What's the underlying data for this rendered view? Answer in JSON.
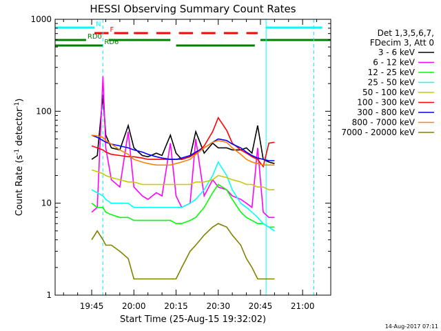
{
  "chart_data": {
    "type": "line",
    "title": "HESSI Observing Summary Count Rates",
    "xlabel": "Start Time (25-Aug-15 19:32:02)",
    "ylabel_main": "Count Rate (s",
    "ylabel_sup1": "-1",
    "ylabel_mid": " detector",
    "ylabel_sup2": "-1",
    "ylabel_end": ")",
    "timestamp": "14-Aug-2017 07:11",
    "y_scale": "log",
    "ylim": [
      1,
      1000
    ],
    "xlim": [
      "19:32",
      "21:10"
    ],
    "x_ticks": [
      "19:45",
      "20:00",
      "20:15",
      "20:30",
      "20:45",
      "21:00"
    ],
    "y_tick_labels": [
      "1",
      "10",
      "100",
      "1000"
    ],
    "legend_header": [
      "Det 1,3,5,6,7,",
      "FDecim 3, Att 0"
    ],
    "flags": {
      "N": {
        "label": "N",
        "intervals": [
          [
            "19:32",
            "19:46"
          ],
          [
            "20:47",
            "21:07"
          ]
        ],
        "color": "#00ffff"
      },
      "F": {
        "label": "F",
        "intervals": [
          [
            "19:46",
            "19:51"
          ],
          [
            "19:53",
            "19:58"
          ],
          [
            "20:00",
            "20:05"
          ],
          [
            "20:08",
            "20:13"
          ],
          [
            "20:16",
            "20:21"
          ],
          [
            "20:24",
            "20:29"
          ],
          [
            "20:32",
            "20:37"
          ],
          [
            "20:40",
            "20:44"
          ]
        ],
        "color": "#ff0000"
      },
      "RD0": {
        "label": "RD0",
        "intervals": [
          [
            "19:32",
            "19:43"
          ],
          [
            "19:51",
            "20:13"
          ],
          [
            "20:45",
            "21:10"
          ]
        ],
        "color": "#008000"
      },
      "RD6": {
        "label": "RD6",
        "intervals": [
          [
            "19:32",
            "19:49"
          ],
          [
            "20:15",
            "20:43"
          ]
        ],
        "color": "#008000"
      }
    },
    "vlines_cyan_solid": [
      "19:32",
      "20:47"
    ],
    "vlines_cyan_dashed": [
      "19:49",
      "21:04"
    ],
    "series": [
      {
        "name": "3 - 6 keV",
        "color": "#000000",
        "x": [
          "19:45",
          "19:47",
          "19:49",
          "19:50",
          "19:52",
          "19:55",
          "19:58",
          "20:00",
          "20:03",
          "20:05",
          "20:08",
          "20:10",
          "20:13",
          "20:15",
          "20:17",
          "20:20",
          "20:22",
          "20:25",
          "20:28",
          "20:30",
          "20:33",
          "20:35",
          "20:38",
          "20:40",
          "20:42",
          "20:44",
          "20:46",
          "20:48",
          "20:50"
        ],
        "values": [
          30,
          33,
          150,
          55,
          40,
          38,
          70,
          40,
          33,
          32,
          35,
          33,
          55,
          35,
          30,
          32,
          60,
          35,
          45,
          40,
          40,
          38,
          38,
          40,
          35,
          70,
          30,
          28,
          27
        ]
      },
      {
        "name": "6 - 12 keV",
        "color": "#ff00ff",
        "x": [
          "19:45",
          "19:47",
          "19:49",
          "19:50",
          "19:52",
          "19:55",
          "19:58",
          "20:00",
          "20:03",
          "20:05",
          "20:08",
          "20:10",
          "20:13",
          "20:15",
          "20:17",
          "20:20",
          "20:22",
          "20:25",
          "20:28",
          "20:30",
          "20:33",
          "20:35",
          "20:38",
          "20:40",
          "20:42",
          "20:44",
          "20:46",
          "20:48",
          "20:50"
        ],
        "values": [
          8,
          9,
          240,
          40,
          18,
          15,
          60,
          15,
          12,
          11,
          13,
          12,
          45,
          12,
          9,
          10,
          50,
          12,
          18,
          15,
          14,
          12,
          11,
          10,
          9,
          40,
          8,
          7,
          7
        ]
      },
      {
        "name": "12 - 25 keV",
        "color": "#00ff00",
        "x": [
          "19:45",
          "19:47",
          "19:49",
          "19:50",
          "19:52",
          "19:55",
          "19:58",
          "20:00",
          "20:03",
          "20:05",
          "20:08",
          "20:10",
          "20:13",
          "20:15",
          "20:17",
          "20:20",
          "20:22",
          "20:25",
          "20:28",
          "20:30",
          "20:33",
          "20:35",
          "20:38",
          "20:40",
          "20:42",
          "20:44",
          "20:46",
          "20:48",
          "20:50"
        ],
        "values": [
          10,
          9,
          9,
          8,
          7.5,
          7,
          7,
          6.5,
          6.5,
          6.5,
          6.5,
          6.5,
          6.5,
          6,
          6,
          6.5,
          7,
          9,
          13,
          16,
          14,
          11,
          8,
          7,
          6.5,
          6,
          6,
          5.5,
          5.5
        ]
      },
      {
        "name": "25 - 50 keV",
        "color": "#00ffff",
        "x": [
          "19:45",
          "19:47",
          "19:49",
          "19:50",
          "19:52",
          "19:55",
          "19:58",
          "20:00",
          "20:03",
          "20:05",
          "20:08",
          "20:10",
          "20:13",
          "20:15",
          "20:17",
          "20:20",
          "20:22",
          "20:25",
          "20:28",
          "20:30",
          "20:33",
          "20:35",
          "20:38",
          "20:40",
          "20:42",
          "20:44",
          "20:46",
          "20:48",
          "20:50"
        ],
        "values": [
          14,
          13,
          12,
          11,
          10,
          10,
          10,
          9,
          9,
          9,
          9,
          9,
          9,
          9,
          9,
          10,
          11,
          14,
          20,
          28,
          20,
          14,
          10,
          9,
          8,
          7,
          6,
          5.5,
          5
        ]
      },
      {
        "name": "50 - 100 keV",
        "color": "#c8c800",
        "x": [
          "19:45",
          "19:47",
          "19:49",
          "19:50",
          "19:52",
          "19:55",
          "19:58",
          "20:00",
          "20:03",
          "20:05",
          "20:08",
          "20:10",
          "20:13",
          "20:15",
          "20:17",
          "20:20",
          "20:22",
          "20:25",
          "20:28",
          "20:30",
          "20:33",
          "20:35",
          "20:38",
          "20:40",
          "20:42",
          "20:44",
          "20:46",
          "20:48",
          "20:50"
        ],
        "values": [
          23,
          22,
          21,
          20,
          19,
          18,
          17,
          17,
          16,
          16,
          16,
          16,
          16,
          16,
          16,
          16,
          17,
          17,
          18,
          20,
          19,
          18,
          17,
          16,
          16,
          15,
          15,
          14,
          14
        ]
      },
      {
        "name": "100 - 300 keV",
        "color": "#ff0000",
        "x": [
          "19:45",
          "19:47",
          "19:49",
          "19:50",
          "19:52",
          "19:55",
          "19:58",
          "20:00",
          "20:03",
          "20:05",
          "20:08",
          "20:10",
          "20:13",
          "20:15",
          "20:17",
          "20:20",
          "20:22",
          "20:25",
          "20:28",
          "20:30",
          "20:33",
          "20:35",
          "20:38",
          "20:40",
          "20:42",
          "20:44",
          "20:46",
          "20:48",
          "20:50"
        ],
        "values": [
          42,
          40,
          38,
          36,
          34,
          33,
          32,
          32,
          31,
          30,
          30,
          30,
          30,
          30,
          30,
          32,
          35,
          42,
          60,
          85,
          62,
          45,
          38,
          35,
          32,
          30,
          25,
          45,
          46
        ]
      },
      {
        "name": "300 - 800 keV",
        "color": "#0000ff",
        "x": [
          "19:45",
          "19:47",
          "19:49",
          "19:50",
          "19:52",
          "19:55",
          "19:58",
          "20:00",
          "20:03",
          "20:05",
          "20:08",
          "20:10",
          "20:13",
          "20:15",
          "20:17",
          "20:20",
          "20:22",
          "20:25",
          "20:28",
          "20:30",
          "20:33",
          "20:35",
          "20:38",
          "20:40",
          "20:42",
          "20:44",
          "20:46",
          "20:48",
          "20:50"
        ],
        "values": [
          55,
          52,
          48,
          46,
          44,
          42,
          40,
          38,
          36,
          34,
          32,
          31,
          30,
          30,
          31,
          33,
          36,
          40,
          46,
          50,
          48,
          44,
          40,
          36,
          33,
          31,
          30,
          29,
          29
        ]
      },
      {
        "name": "800 - 7000 keV",
        "color": "#ff8000",
        "x": [
          "19:45",
          "19:47",
          "19:49",
          "19:50",
          "19:52",
          "19:55",
          "19:58",
          "20:00",
          "20:03",
          "20:05",
          "20:08",
          "20:10",
          "20:13",
          "20:15",
          "20:17",
          "20:20",
          "20:22",
          "20:25",
          "20:28",
          "20:30",
          "20:33",
          "20:35",
          "20:38",
          "20:40",
          "20:42",
          "20:44",
          "20:46",
          "20:48",
          "20:50"
        ],
        "values": [
          55,
          54,
          52,
          48,
          44,
          38,
          34,
          30,
          28,
          27,
          26,
          26,
          26,
          27,
          28,
          30,
          34,
          40,
          46,
          48,
          46,
          40,
          34,
          30,
          28,
          27,
          26,
          26,
          26
        ]
      },
      {
        "name": "7000 - 20000 keV",
        "color": "#808000",
        "x": [
          "19:45",
          "19:47",
          "19:49",
          "19:50",
          "19:52",
          "19:55",
          "19:58",
          "20:00",
          "20:03",
          "20:05",
          "20:08",
          "20:10",
          "20:13",
          "20:15",
          "20:17",
          "20:20",
          "20:22",
          "20:25",
          "20:28",
          "20:30",
          "20:33",
          "20:35",
          "20:38",
          "20:40",
          "20:42",
          "20:44",
          "20:46",
          "20:48",
          "20:50"
        ],
        "values": [
          4,
          5,
          4,
          3.5,
          3.5,
          3,
          2.5,
          1.5,
          1.5,
          1.5,
          1.5,
          1.5,
          1.5,
          1.5,
          2,
          3,
          3.5,
          4.5,
          5.5,
          6,
          5.5,
          4.5,
          3.5,
          2.5,
          2,
          1.5,
          1.5,
          1.5,
          1.5
        ]
      }
    ]
  }
}
